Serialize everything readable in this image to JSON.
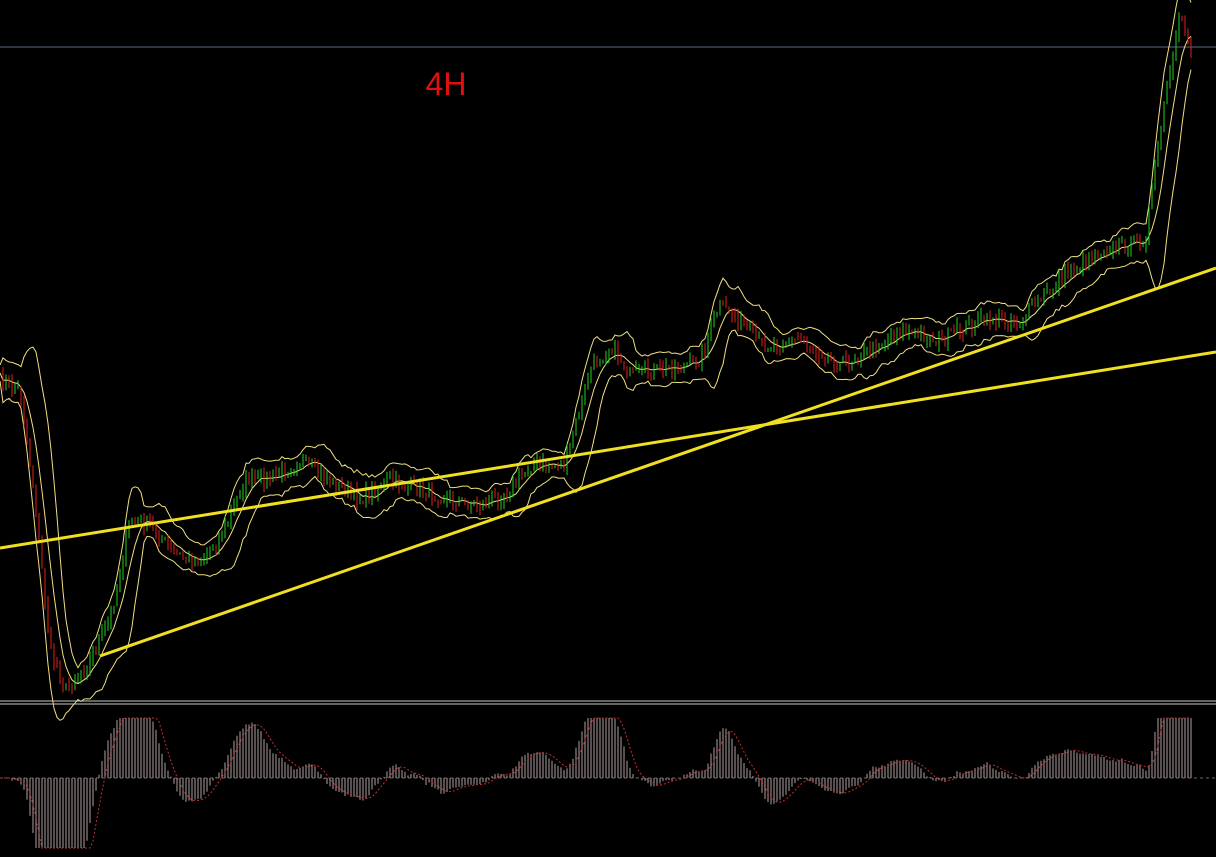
{
  "label": "4H"
}
